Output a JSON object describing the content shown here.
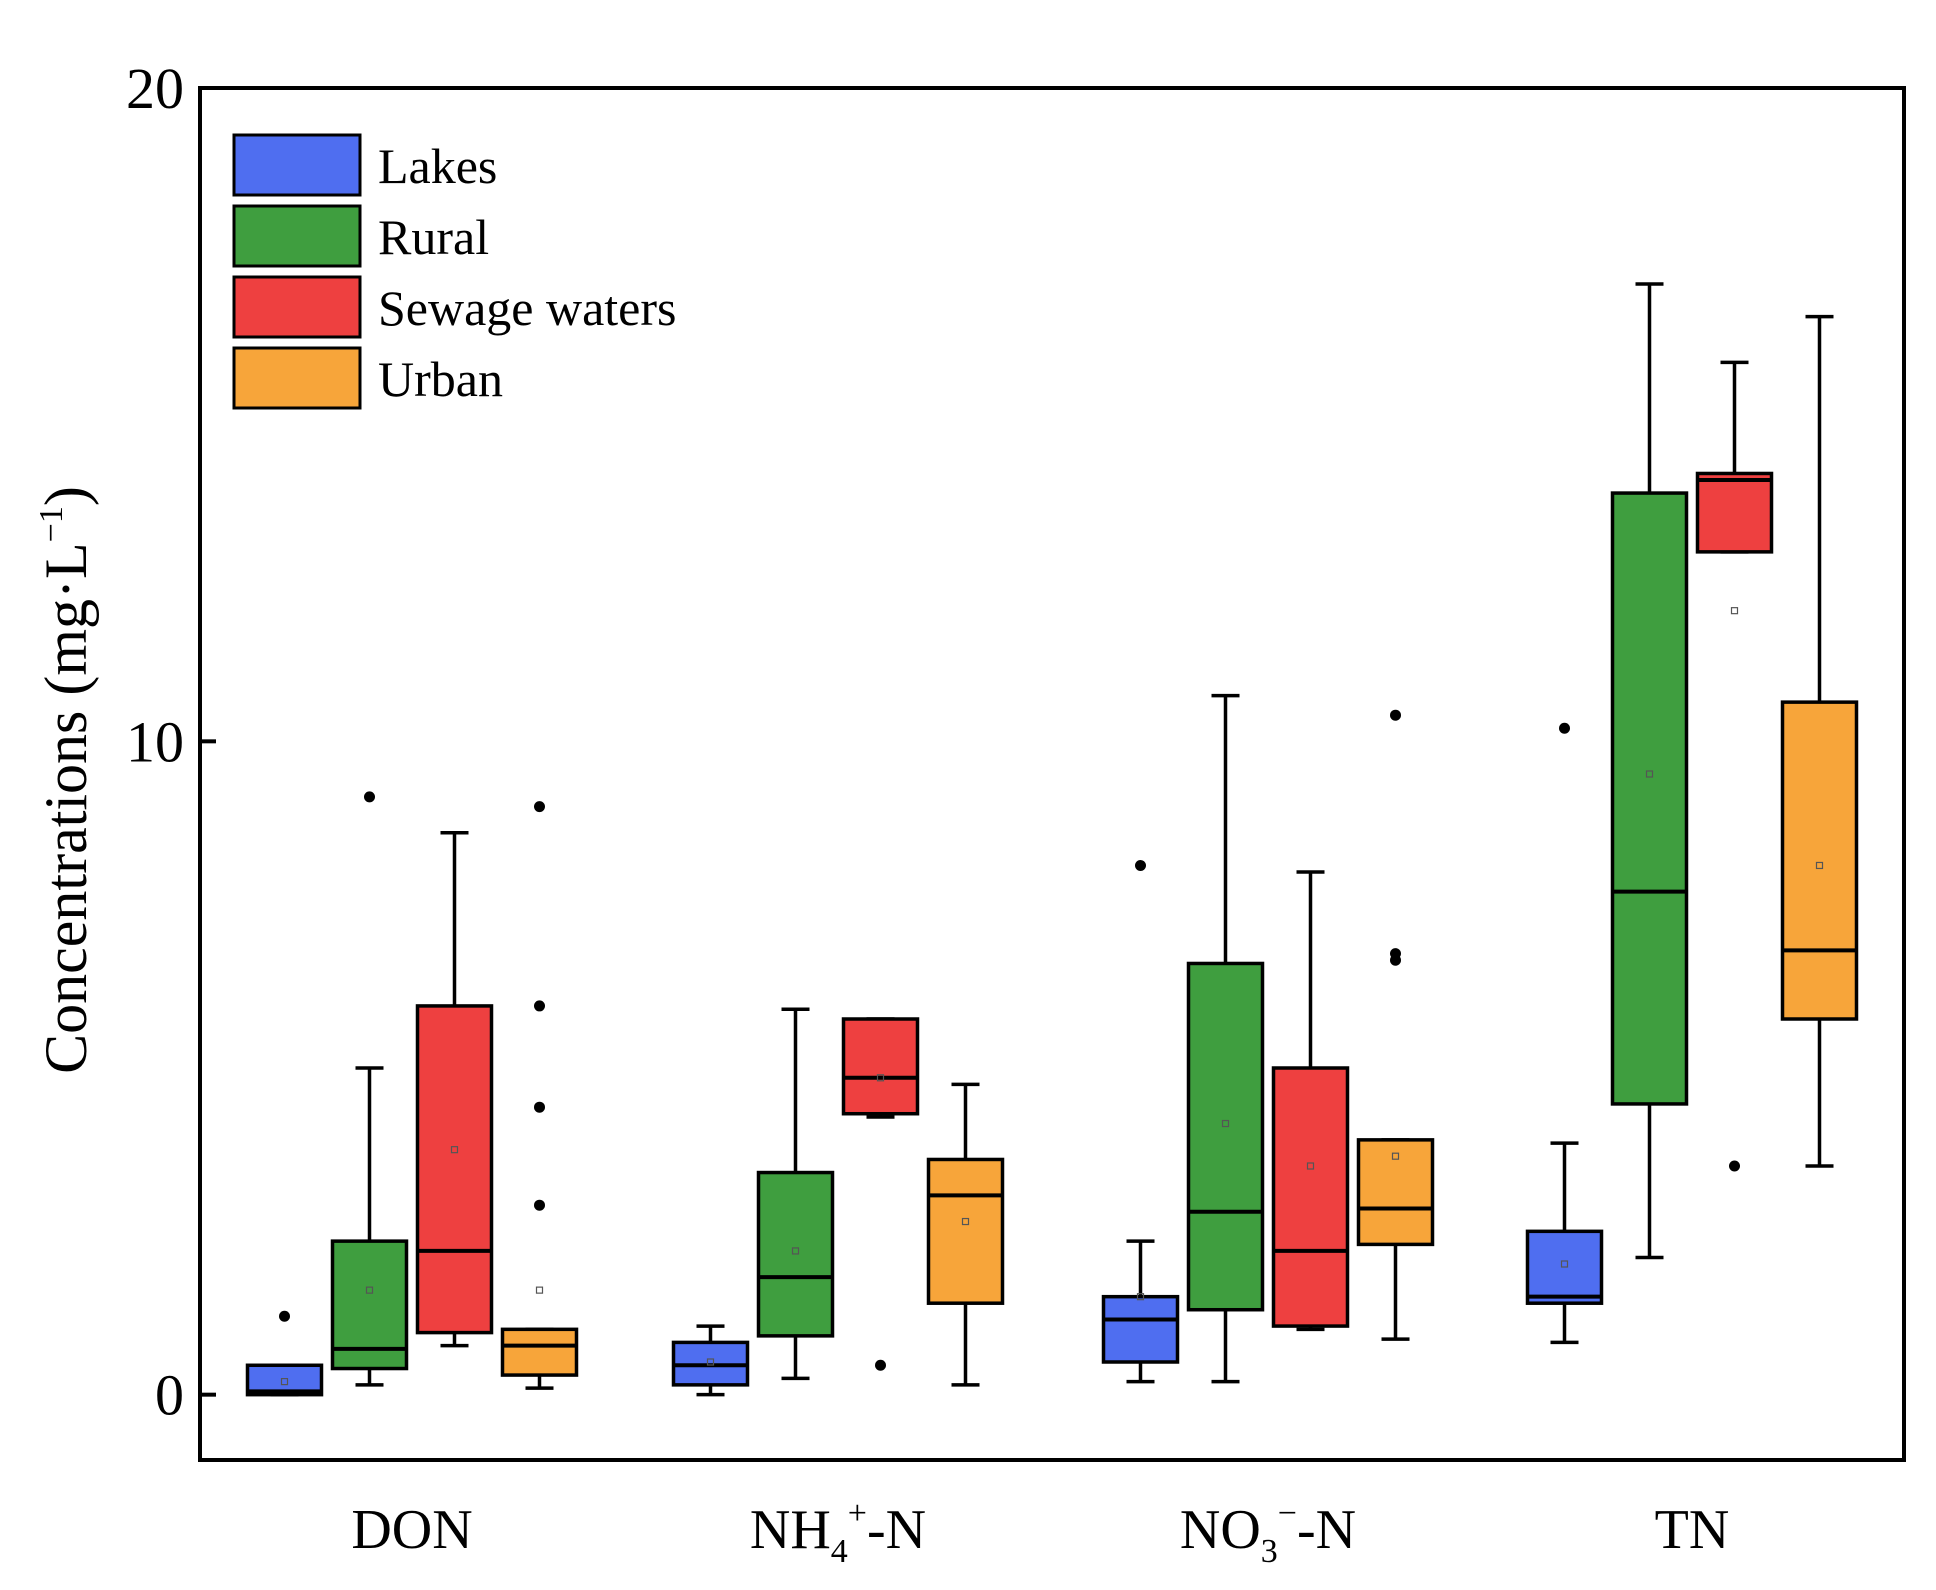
{
  "chart_data": {
    "type": "box",
    "title": "",
    "xlabel": "",
    "ylabel": {
      "main": "Concentrations (mg·L",
      "sup": "−1",
      "close": ")"
    },
    "ylim": [
      -1,
      20
    ],
    "yticks": [
      "0",
      "10",
      "20"
    ],
    "ytick_values": [
      0,
      10,
      20
    ],
    "categories": [
      {
        "id": "DON",
        "parts": [
          {
            "t": "DON"
          }
        ]
      },
      {
        "id": "NH4+-N",
        "parts": [
          {
            "t": "NH"
          },
          {
            "t": "4",
            "k": "sub"
          },
          {
            "t": "+",
            "k": "sup"
          },
          {
            "t": "-N"
          }
        ]
      },
      {
        "id": "NO3--N",
        "parts": [
          {
            "t": "NO"
          },
          {
            "t": "3",
            "k": "sub"
          },
          {
            "t": "−",
            "k": "sup"
          },
          {
            "t": "-N"
          }
        ]
      },
      {
        "id": "TN",
        "parts": [
          {
            "t": "TN"
          }
        ]
      }
    ],
    "legend": {
      "position": "top-left"
    },
    "series": [
      {
        "name": "Lakes",
        "color": "#4f6ef0",
        "boxes": [
          {
            "whislo": 0.0,
            "q1": 0.0,
            "med": 0.05,
            "q3": 0.45,
            "whishi": 0.45,
            "mean": 0.2,
            "fliers": [
              1.2
            ]
          },
          {
            "whislo": 0.0,
            "q1": 0.15,
            "med": 0.45,
            "q3": 0.8,
            "whishi": 1.05,
            "mean": 0.5,
            "fliers": []
          },
          {
            "whislo": 0.2,
            "q1": 0.5,
            "med": 1.15,
            "q3": 1.5,
            "whishi": 2.35,
            "mean": 1.5,
            "fliers": [
              8.1
            ]
          },
          {
            "whislo": 0.8,
            "q1": 1.4,
            "med": 1.5,
            "q3": 2.5,
            "whishi": 3.85,
            "mean": 2.0,
            "fliers": [
              10.2
            ]
          }
        ]
      },
      {
        "name": "Rural",
        "color": "#3f9e3f",
        "boxes": [
          {
            "whislo": 0.15,
            "q1": 0.4,
            "med": 0.7,
            "q3": 2.35,
            "whishi": 5.0,
            "mean": 1.6,
            "fliers": [
              9.15
            ]
          },
          {
            "whislo": 0.25,
            "q1": 0.9,
            "med": 1.8,
            "q3": 3.4,
            "whishi": 5.9,
            "mean": 2.2,
            "fliers": []
          },
          {
            "whislo": 0.2,
            "q1": 1.3,
            "med": 2.8,
            "q3": 6.6,
            "whishi": 10.7,
            "mean": 4.15,
            "fliers": []
          },
          {
            "whislo": 2.1,
            "q1": 4.45,
            "med": 7.7,
            "q3": 13.8,
            "whishi": 17.0,
            "mean": 9.5,
            "fliers": []
          }
        ]
      },
      {
        "name": "Sewage waters",
        "color": "#ee4040",
        "boxes": [
          {
            "whislo": 0.75,
            "q1": 0.95,
            "med": 2.2,
            "q3": 5.95,
            "whishi": 8.6,
            "mean": 3.75,
            "fliers": []
          },
          {
            "whislo": 4.25,
            "q1": 4.3,
            "med": 4.85,
            "q3": 5.75,
            "whishi": 5.75,
            "mean": 4.85,
            "fliers": [
              0.45
            ]
          },
          {
            "whislo": 1.0,
            "q1": 1.05,
            "med": 2.2,
            "q3": 5.0,
            "whishi": 8.0,
            "mean": 3.5,
            "fliers": []
          },
          {
            "whislo": 12.9,
            "q1": 12.9,
            "med": 14.0,
            "q3": 14.1,
            "whishi": 15.8,
            "mean": 12.0,
            "fliers": [
              3.5
            ]
          }
        ]
      },
      {
        "name": "Urban",
        "color": "#f7a53a",
        "boxes": [
          {
            "whislo": 0.1,
            "q1": 0.3,
            "med": 0.75,
            "q3": 1.0,
            "whishi": 1.0,
            "mean": 1.6,
            "fliers": [
              9.0,
              5.95,
              4.4,
              2.9
            ]
          },
          {
            "whislo": 0.15,
            "q1": 1.4,
            "med": 3.05,
            "q3": 3.6,
            "whishi": 4.75,
            "mean": 2.65,
            "fliers": []
          },
          {
            "whislo": 0.85,
            "q1": 2.3,
            "med": 2.85,
            "q3": 3.9,
            "whishi": 3.9,
            "mean": 3.65,
            "fliers": [
              10.4,
              6.75,
              6.65
            ]
          },
          {
            "whislo": 3.5,
            "q1": 5.75,
            "med": 6.8,
            "q3": 10.6,
            "whishi": 16.5,
            "mean": 8.1,
            "fliers": []
          }
        ]
      }
    ]
  }
}
